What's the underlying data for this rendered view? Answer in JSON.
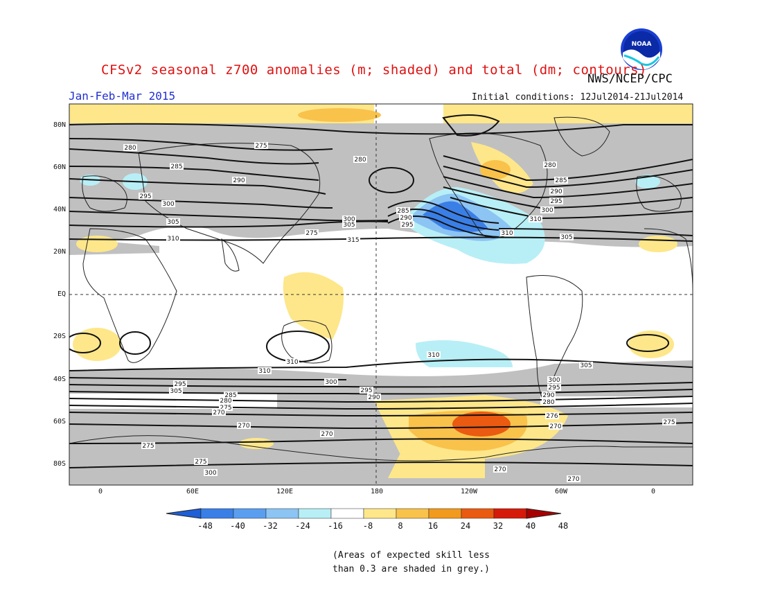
{
  "header": {
    "title": "CFSv2 seasonal z700 anomalies (m; shaded) and total (dm; contours)",
    "org": "NWS/NCEP/CPC",
    "period": "Jan-Feb-Mar 2015",
    "initial_conditions": "Initial conditions: 12Jul2014-21Jul2014",
    "logo_text": "NOAA"
  },
  "map": {
    "lat_labels": [
      "80N",
      "60N",
      "40N",
      "20N",
      "EQ",
      "20S",
      "40S",
      "60S",
      "80S"
    ],
    "lon_labels": [
      "0",
      "60E",
      "120E",
      "180",
      "120W",
      "60W",
      "0"
    ],
    "contour_labels": [
      "280",
      "275",
      "285",
      "290",
      "295",
      "300",
      "305",
      "310",
      "280",
      "285",
      "290",
      "295",
      "300",
      "305",
      "275",
      "280",
      "285",
      "290",
      "295",
      "300",
      "310",
      "305",
      "310",
      "315",
      "310",
      "310",
      "310",
      "305",
      "300",
      "295",
      "290",
      "285",
      "280",
      "275",
      "270",
      "270",
      "270",
      "275",
      "275",
      "300",
      "295",
      "305",
      "300",
      "295",
      "290",
      "280",
      "276",
      "270",
      "270",
      "270",
      "275"
    ]
  },
  "colorbar": {
    "labels": [
      "-48",
      "-40",
      "-32",
      "-24",
      "-16",
      "-8",
      "8",
      "16",
      "24",
      "32",
      "40",
      "48"
    ],
    "colors": [
      "#1e5fd8",
      "#3a7fe6",
      "#5a9ef0",
      "#8cc4f4",
      "#b8eef6",
      "#ffffff",
      "#fde78a",
      "#f9c24a",
      "#f29a1e",
      "#ea5a10",
      "#d51a0a",
      "#a80000"
    ]
  },
  "footnote": {
    "line1": "(Areas of expected skill less",
    "line2": "than 0.3 are shaded in grey.)"
  },
  "colors": {
    "grey_skill": "#c0c0c0",
    "title_red": "#e01010",
    "period_blue": "#2030d0"
  }
}
